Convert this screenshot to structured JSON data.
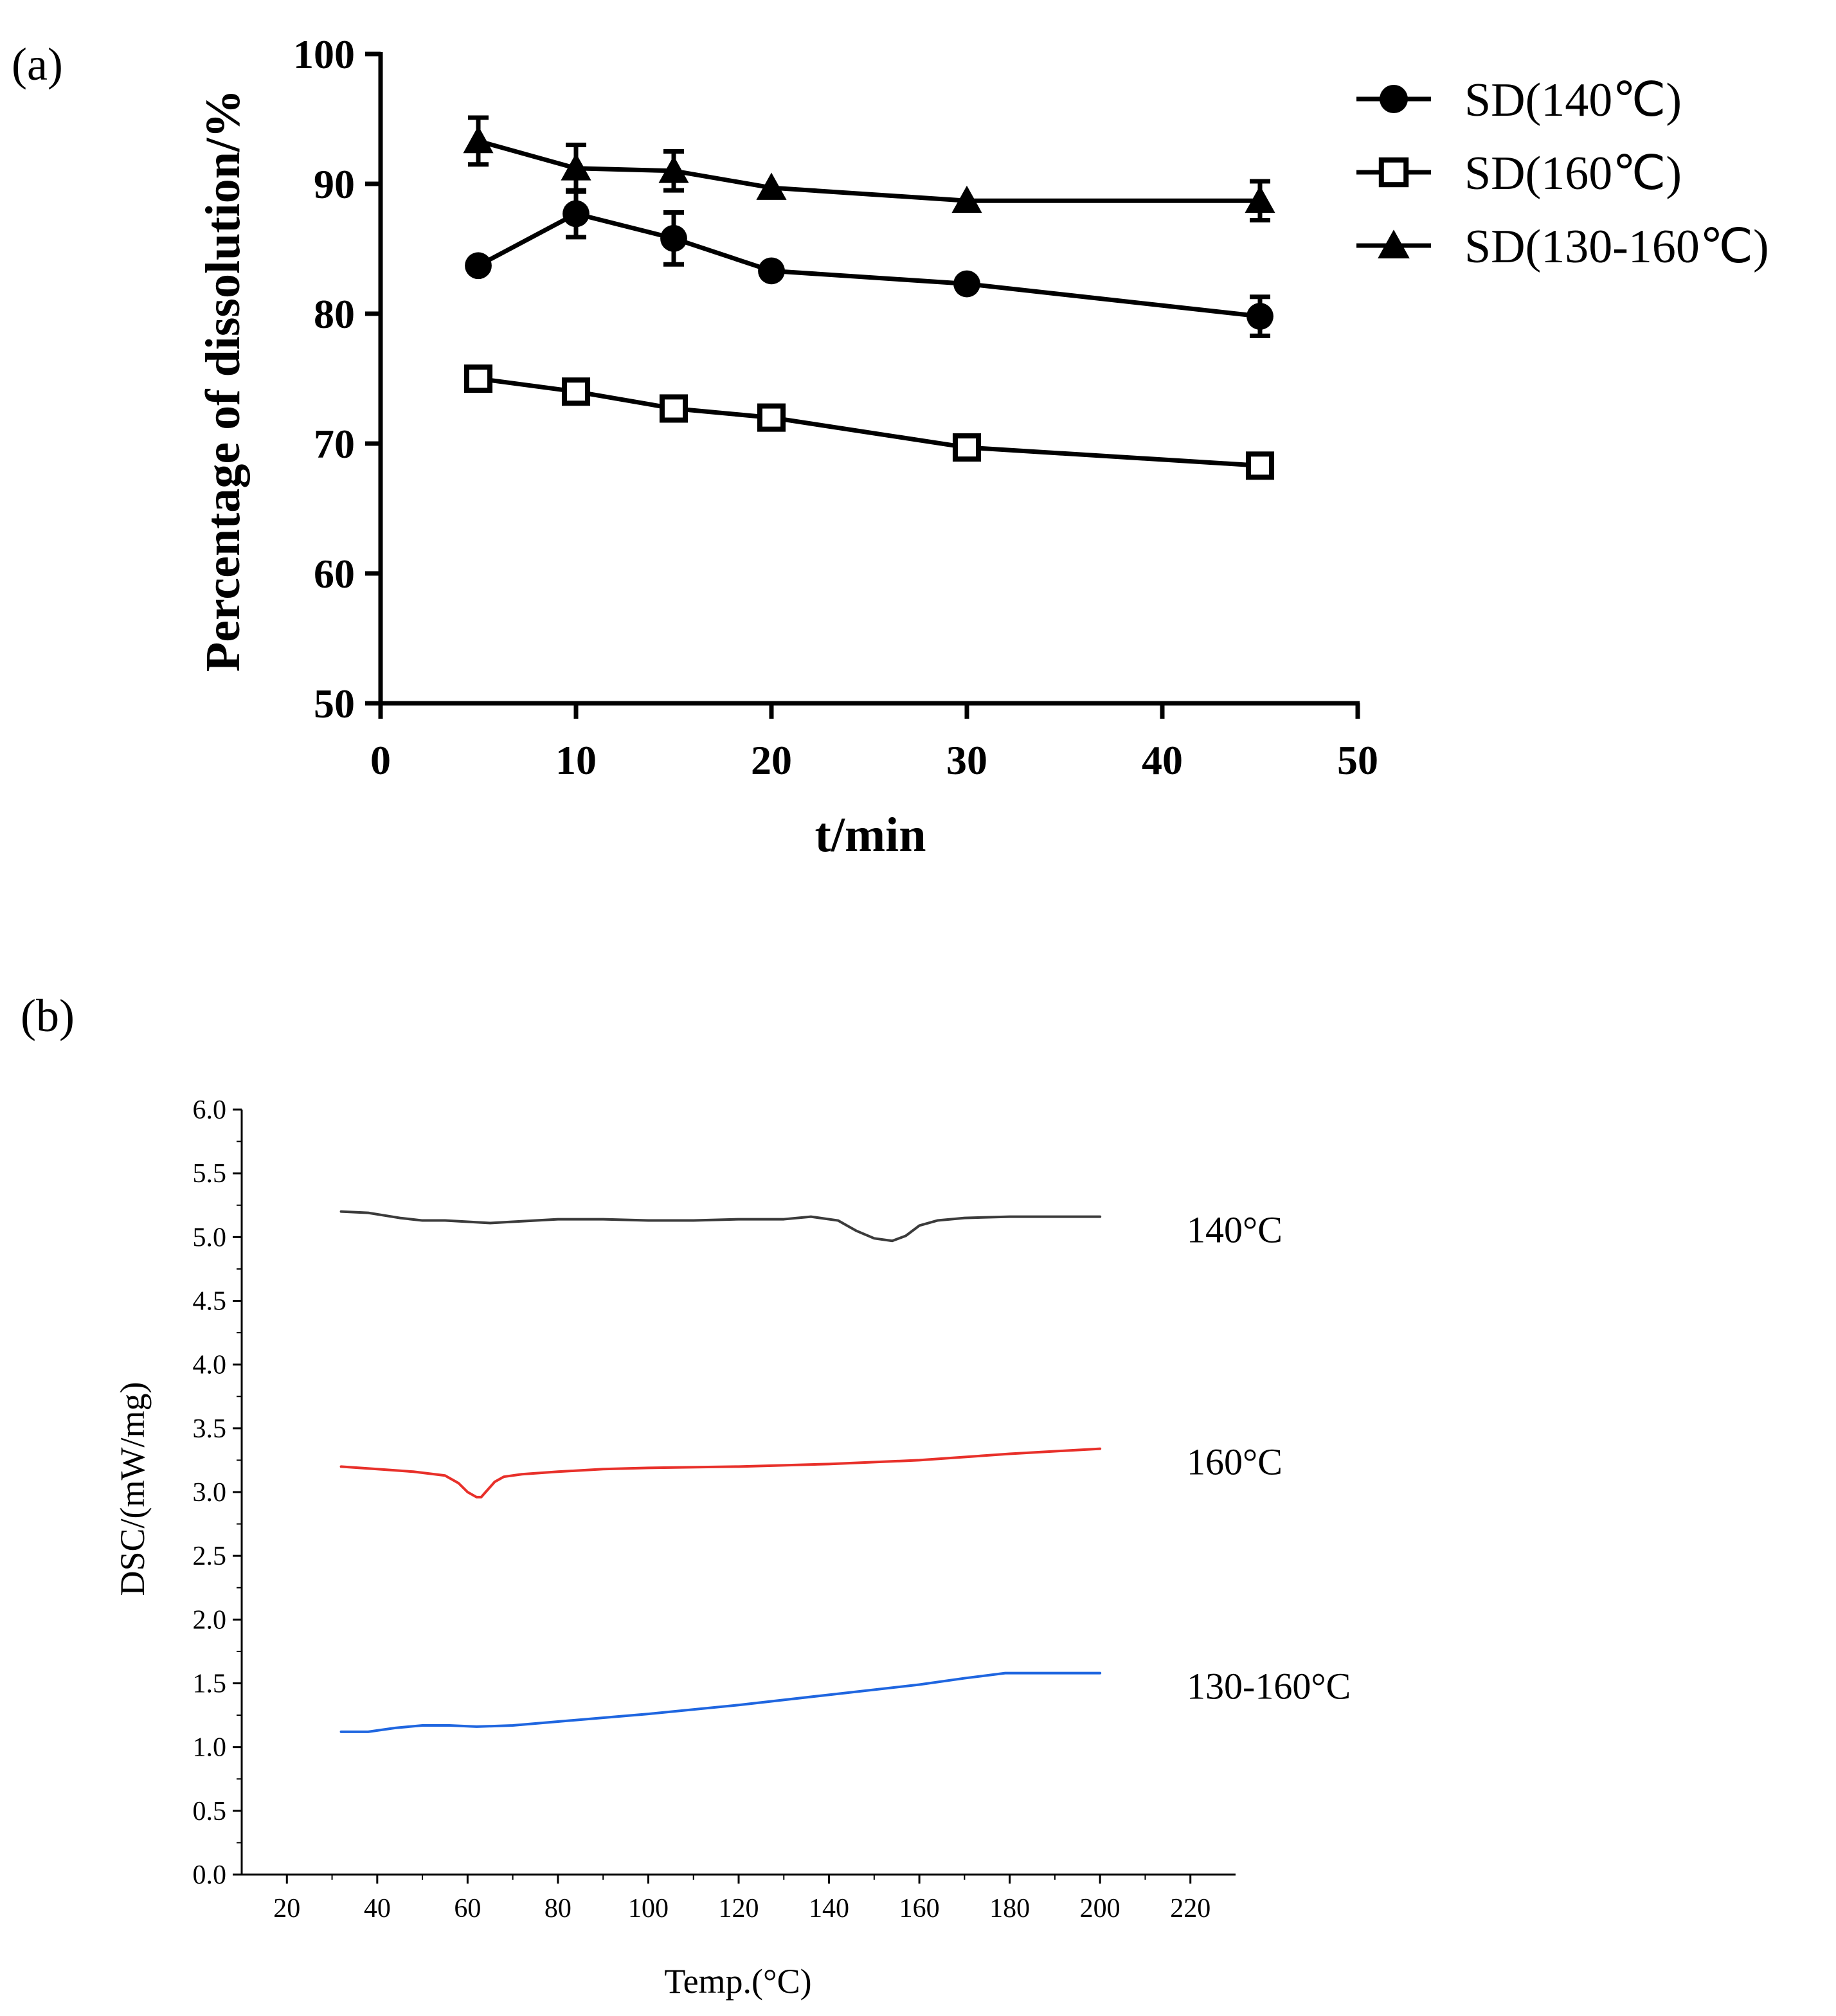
{
  "panels": {
    "a_label": "(a)",
    "b_label": "(b)"
  },
  "chart_data": [
    {
      "type": "line",
      "panel": "(a)",
      "xlabel": "t/min",
      "ylabel": "Percentage of dissolution/%",
      "xlim": [
        0,
        50
      ],
      "ylim": [
        50,
        100
      ],
      "xticks": [
        "0",
        "10",
        "20",
        "30",
        "40",
        "50"
      ],
      "yticks": [
        "50",
        "60",
        "70",
        "80",
        "90",
        "100"
      ],
      "x": [
        5,
        10,
        15,
        20,
        30,
        45
      ],
      "legend_position": "top-right",
      "grid": false,
      "series": [
        {
          "name": "SD(140℃)",
          "marker": "filled-circle",
          "color": "#000000",
          "values": [
            83.7,
            87.7,
            85.8,
            83.3,
            82.3,
            79.8
          ],
          "errors": [
            0.4,
            1.8,
            2.0,
            0.4,
            0.4,
            1.5
          ]
        },
        {
          "name": "SD(160℃)",
          "marker": "open-square",
          "color": "#000000",
          "values": [
            75.0,
            74.0,
            72.7,
            72.0,
            69.7,
            68.3
          ],
          "errors": [
            0.3,
            0.3,
            0.4,
            0.3,
            0.8,
            0.4
          ]
        },
        {
          "name": "SD(130-160℃)",
          "marker": "filled-triangle",
          "color": "#000000",
          "values": [
            93.3,
            91.2,
            91.0,
            89.7,
            88.7,
            88.7
          ],
          "errors": [
            1.8,
            1.8,
            1.5,
            0.3,
            0.3,
            1.5
          ]
        }
      ]
    },
    {
      "type": "line",
      "panel": "(b)",
      "xlabel": "Temp.(°C)",
      "ylabel": "DSC/(mW/mg)",
      "xlim": [
        10,
        230
      ],
      "ylim": [
        0,
        6
      ],
      "xticks": [
        "20",
        "40",
        "60",
        "80",
        "100",
        "120",
        "140",
        "160",
        "180",
        "200",
        "220"
      ],
      "yticks": [
        "0.0",
        "0.5",
        "1.0",
        "1.5",
        "2.0",
        "2.5",
        "3.0",
        "3.5",
        "4.0",
        "4.5",
        "5.0",
        "5.5",
        "6.0"
      ],
      "grid": false,
      "series": [
        {
          "name": "140°C",
          "color": "#3b3b3b",
          "x": [
            32,
            38,
            45,
            50,
            55,
            60,
            65,
            70,
            80,
            90,
            100,
            110,
            120,
            130,
            136,
            142,
            146,
            150,
            154,
            157,
            160,
            164,
            170,
            180,
            190,
            200
          ],
          "y": [
            5.2,
            5.19,
            5.15,
            5.13,
            5.13,
            5.12,
            5.11,
            5.12,
            5.14,
            5.14,
            5.13,
            5.13,
            5.14,
            5.14,
            5.16,
            5.13,
            5.05,
            4.99,
            4.97,
            5.01,
            5.09,
            5.13,
            5.15,
            5.16,
            5.16,
            5.16
          ]
        },
        {
          "name": "160°C",
          "color": "#e8302a",
          "x": [
            32,
            40,
            48,
            55,
            58,
            60,
            62,
            63,
            64,
            66,
            68,
            72,
            80,
            90,
            100,
            120,
            140,
            160,
            180,
            200
          ],
          "y": [
            3.2,
            3.18,
            3.16,
            3.13,
            3.07,
            3.0,
            2.96,
            2.96,
            3.0,
            3.08,
            3.12,
            3.14,
            3.16,
            3.18,
            3.19,
            3.2,
            3.22,
            3.25,
            3.3,
            3.34
          ]
        },
        {
          "name": "130-160°C",
          "color": "#1f66e0",
          "x": [
            32,
            38,
            44,
            50,
            56,
            62,
            70,
            80,
            100,
            120,
            140,
            160,
            170,
            179,
            185,
            190,
            200
          ],
          "y": [
            1.12,
            1.12,
            1.15,
            1.17,
            1.17,
            1.16,
            1.17,
            1.2,
            1.26,
            1.33,
            1.41,
            1.49,
            1.54,
            1.58,
            1.58,
            1.58,
            1.58
          ]
        }
      ]
    }
  ]
}
